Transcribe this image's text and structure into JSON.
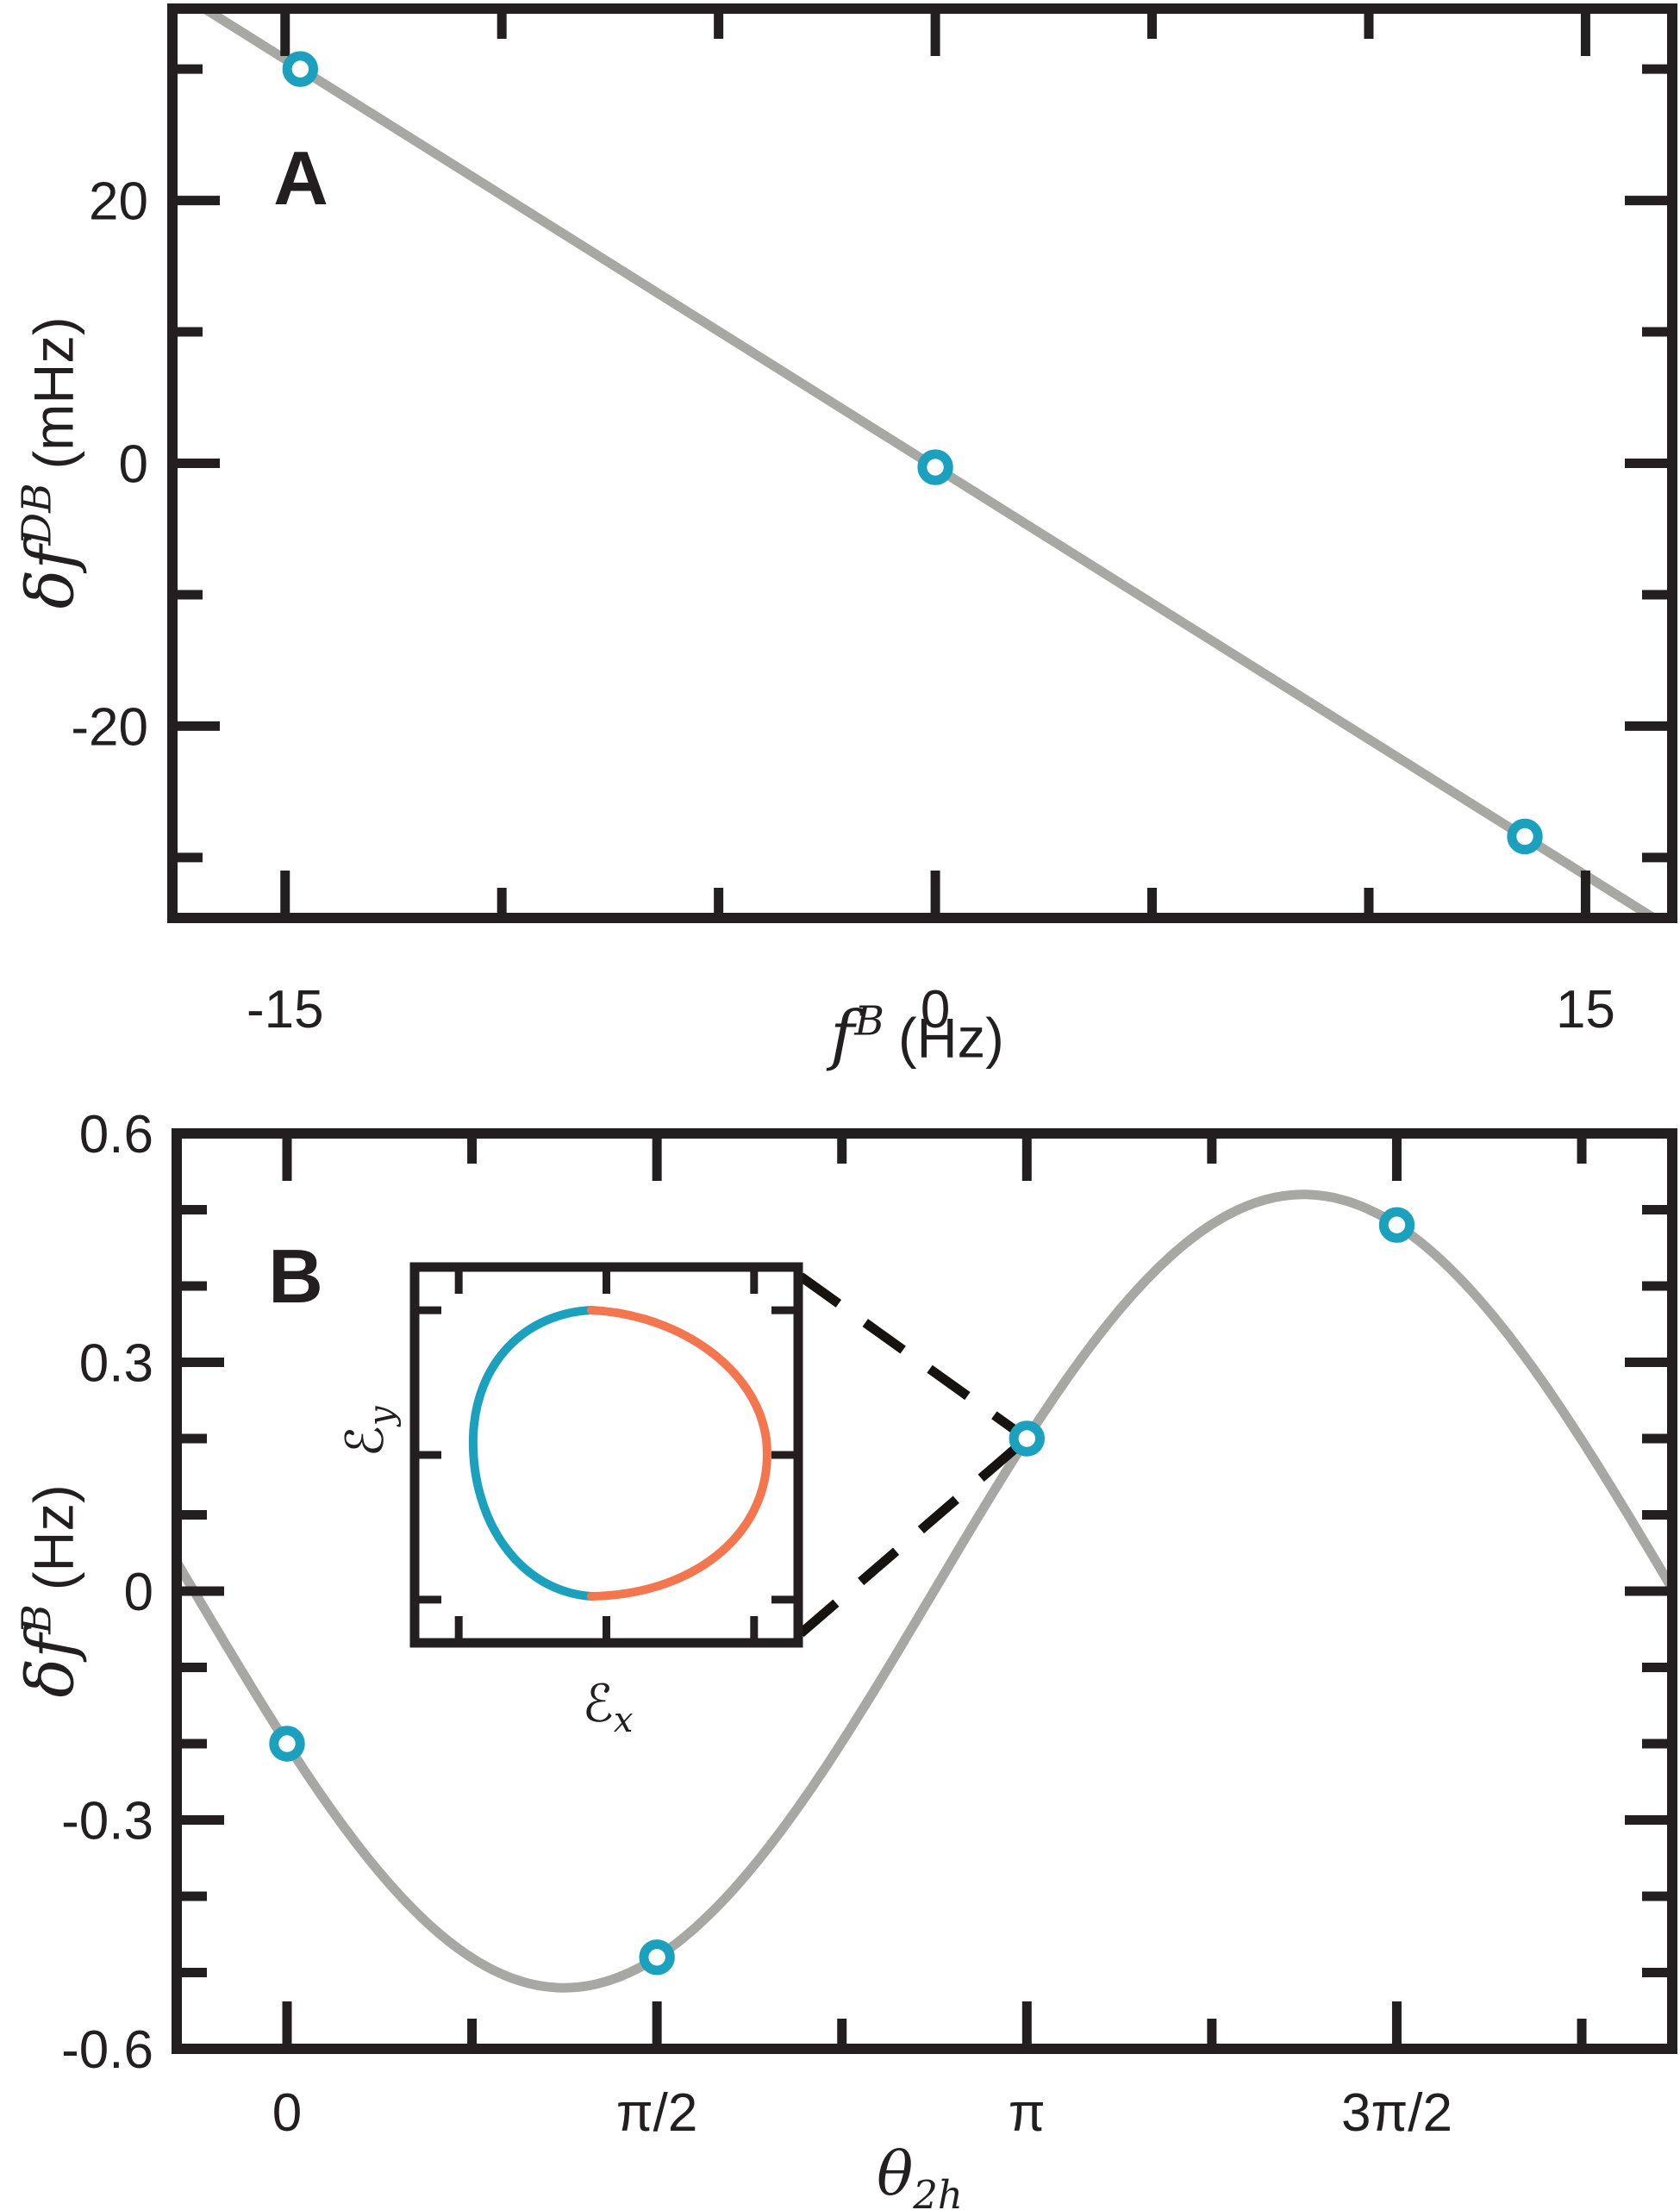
{
  "colors": {
    "teal": "#1BA1BD",
    "orange": "#F4764F",
    "gray": "#A7A7A4",
    "axis": "#231F20",
    "dash_black": "#171310",
    "background": "#FFFFFF"
  },
  "panels": {
    "a": {
      "letter": "A",
      "ylabel": {
        "base": "δf",
        "sup": "DB",
        "unit": "(mHz)"
      },
      "xlabel": {
        "base": "f",
        "sup": "B",
        "unit": "(Hz)"
      }
    },
    "b": {
      "letter": "B",
      "ylabel": {
        "base": "δf",
        "sup": "B",
        "unit": "(Hz)"
      },
      "xlabel": {
        "base": "θ",
        "sub": "2h"
      },
      "inset": {
        "xlabel": {
          "base": "ℰ",
          "sub": "x"
        },
        "ylabel": {
          "base": "ℰ",
          "sub": "y"
        }
      }
    }
  },
  "chart_data": [
    {
      "id": "A",
      "type": "scatter",
      "title": "",
      "xlabel": "f^B (Hz)",
      "ylabel": "δf^DB (mHz)",
      "xlim": [
        -17.6,
        17.0
      ],
      "ylim": [
        -34.6,
        34.6
      ],
      "xticks": {
        "major": [
          -15,
          0,
          15
        ],
        "major_labels": [
          "-15",
          "0",
          "15"
        ],
        "minor": [
          -10,
          -5,
          5,
          10
        ]
      },
      "yticks": {
        "major": [
          -20,
          0,
          20
        ],
        "major_labels": [
          "-20",
          "0",
          "20"
        ],
        "minor": [
          -30,
          -10,
          10,
          30
        ]
      },
      "points": [
        [
          -14.65,
          30.0
        ],
        [
          0.0,
          -0.3
        ],
        [
          13.6,
          -28.4
        ]
      ],
      "fit_line": {
        "type": "linear",
        "slope": -2.07,
        "intercept": -0.3,
        "units": "mHz per Hz"
      },
      "grid": false,
      "legend": null,
      "marker": {
        "shape": "open-circle",
        "color": "teal"
      }
    },
    {
      "id": "B",
      "type": "scatter",
      "title": "",
      "xlabel": "θ_2h",
      "ylabel": "δf^B (Hz)",
      "xlim_rad": [
        -0.4685,
        5.882
      ],
      "ylim": [
        -0.6,
        0.6
      ],
      "xticks": {
        "major_rad": [
          0,
          1.5708,
          3.1416,
          4.7124
        ],
        "major_labels": [
          "0",
          "π/2",
          "π",
          "3π/2"
        ],
        "minor_rad": [
          0.7854,
          2.3562,
          3.927,
          5.4978
        ]
      },
      "yticks": {
        "major": [
          -0.6,
          -0.3,
          0,
          0.3,
          0.6
        ],
        "major_labels": [
          "-0.6",
          "-0.3",
          "0",
          "0.3",
          "0.6"
        ],
        "minor": [
          -0.5,
          -0.4,
          -0.2,
          -0.1,
          0.1,
          0.2,
          0.4,
          0.5
        ]
      },
      "points_rad": [
        [
          0,
          -0.2
        ],
        [
          1.5708,
          -0.48
        ],
        [
          3.1416,
          0.2
        ],
        [
          4.7124,
          0.48
        ]
      ],
      "curve": {
        "type": "sinusoid",
        "amplitude": 0.52,
        "phase_rad": 0.395,
        "formula": "δf^B = -0.52·sin(θ2h + 0.395)"
      },
      "grid": false,
      "legend": null,
      "marker": {
        "shape": "open-circle",
        "color": "teal"
      },
      "inset": {
        "description": "polarization ellipse loop",
        "xlabel": "ℰx",
        "ylabel": "ℰy",
        "left_arc_color": "teal",
        "right_arc_color": "orange",
        "connects_to_point_rad": [
          3.1416,
          0.2
        ]
      }
    }
  ]
}
